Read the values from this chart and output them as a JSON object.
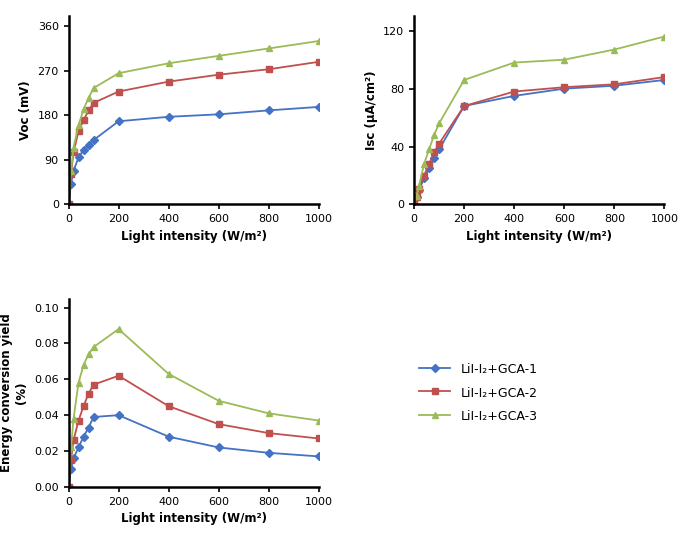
{
  "light_intensity": [
    0,
    10,
    20,
    40,
    60,
    80,
    100,
    200,
    400,
    600,
    800,
    1000
  ],
  "voc_GCA1": [
    0,
    42,
    68,
    95,
    110,
    120,
    130,
    168,
    177,
    182,
    190,
    197
  ],
  "voc_GCA2": [
    0,
    62,
    105,
    148,
    170,
    190,
    205,
    228,
    248,
    262,
    273,
    288
  ],
  "voc_GCA3": [
    0,
    68,
    115,
    160,
    192,
    215,
    235,
    265,
    285,
    300,
    315,
    330
  ],
  "isc_GCA1": [
    0,
    5,
    10,
    18,
    25,
    32,
    38,
    68,
    75,
    80,
    82,
    86
  ],
  "isc_GCA2": [
    0,
    5,
    11,
    20,
    28,
    36,
    42,
    68,
    78,
    81,
    83,
    88
  ],
  "isc_GCA3": [
    0,
    6,
    13,
    28,
    38,
    48,
    56,
    86,
    98,
    100,
    107,
    116
  ],
  "eff_x": [
    0,
    10,
    20,
    40,
    60,
    80,
    100,
    200,
    400,
    600,
    800,
    1000
  ],
  "eff_GCA1": [
    0,
    0.01,
    0.016,
    0.022,
    0.028,
    0.033,
    0.039,
    0.04,
    0.028,
    0.022,
    0.019,
    0.017
  ],
  "eff_GCA2": [
    0,
    0.015,
    0.026,
    0.037,
    0.045,
    0.052,
    0.057,
    0.062,
    0.045,
    0.035,
    0.03,
    0.027
  ],
  "eff_GCA3": [
    0,
    0.022,
    0.038,
    0.058,
    0.068,
    0.074,
    0.078,
    0.088,
    0.063,
    0.048,
    0.041,
    0.037
  ],
  "color_blue": "#4472C4",
  "color_red": "#C0504D",
  "color_green": "#9BBB59",
  "voc_ylabel": "Voc (mV)",
  "isc_ylabel": "Isc (μA/cm²)",
  "eff_ylabel": "Energy conversion yield\n(%)",
  "xlabel": "Light intensity (W/m²)",
  "voc_ylim": [
    0,
    380
  ],
  "voc_yticks": [
    0,
    90,
    180,
    270,
    360
  ],
  "isc_ylim": [
    0,
    130
  ],
  "isc_yticks": [
    0,
    40,
    80,
    120
  ],
  "eff_ylim": [
    0,
    0.105
  ],
  "eff_yticks": [
    0,
    0.02,
    0.04,
    0.06,
    0.08,
    0.1
  ],
  "legend_labels": [
    "LiI-I₂+GCA-1",
    "LiI-I₂+GCA-2",
    "LiI-I₂+GCA-3"
  ]
}
